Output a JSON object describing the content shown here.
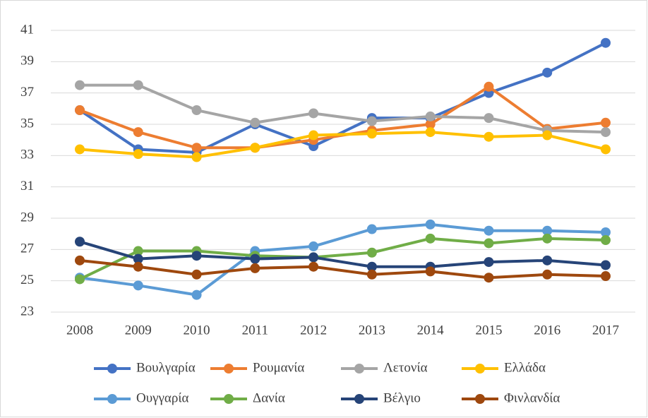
{
  "chart_data": {
    "type": "line",
    "x": [
      "2008",
      "2009",
      "2010",
      "2011",
      "2012",
      "2013",
      "2014",
      "2015",
      "2016",
      "2017"
    ],
    "ylim": [
      23,
      41
    ],
    "yticks": [
      23,
      25,
      27,
      29,
      31,
      33,
      35,
      37,
      39,
      41
    ],
    "grid": true,
    "legend": "bottom",
    "series": [
      {
        "name": "Βουλγαρία",
        "color": "#4472c4",
        "values": [
          35.9,
          33.4,
          33.2,
          35.0,
          33.6,
          35.4,
          35.4,
          37.0,
          38.3,
          40.2
        ]
      },
      {
        "name": "Ρουμανία",
        "color": "#ed7d31",
        "values": [
          35.9,
          34.5,
          33.5,
          33.5,
          34.0,
          34.6,
          35.0,
          37.4,
          34.7,
          35.1
        ]
      },
      {
        "name": "Λετονία",
        "color": "#a5a5a5",
        "values": [
          37.5,
          37.5,
          35.9,
          35.1,
          35.7,
          35.2,
          35.5,
          35.4,
          34.6,
          34.5
        ]
      },
      {
        "name": "Ελλάδα",
        "color": "#ffc000",
        "values": [
          33.4,
          33.1,
          32.9,
          33.5,
          34.3,
          34.4,
          34.5,
          34.2,
          34.3,
          33.4
        ]
      },
      {
        "name": "Ουγγαρία",
        "color": "#5b9bd5",
        "values": [
          25.2,
          24.7,
          24.1,
          26.9,
          27.2,
          28.3,
          28.6,
          28.2,
          28.2,
          28.1
        ]
      },
      {
        "name": "Δανία",
        "color": "#70ad47",
        "values": [
          25.1,
          26.9,
          26.9,
          26.6,
          26.5,
          26.8,
          27.7,
          27.4,
          27.7,
          27.6
        ]
      },
      {
        "name": "Βέλγιο",
        "color": "#264478",
        "values": [
          27.5,
          26.4,
          26.6,
          26.4,
          26.5,
          25.9,
          25.9,
          26.2,
          26.3,
          26.0
        ]
      },
      {
        "name": "Φινλανδία",
        "color": "#9e480e",
        "values": [
          26.3,
          25.9,
          25.4,
          25.8,
          25.9,
          25.4,
          25.6,
          25.2,
          25.4,
          25.3
        ]
      }
    ]
  }
}
